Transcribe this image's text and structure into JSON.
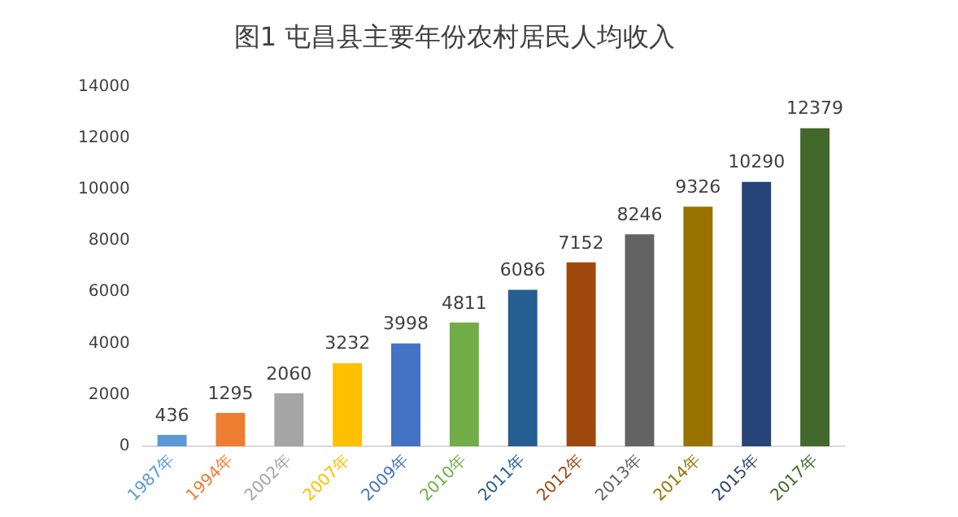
{
  "chart_data": {
    "type": "bar",
    "title": "图1 屯昌县主要年份农村居民人均收入",
    "categories": [
      "1987年",
      "1994年",
      "2002年",
      "2007年",
      "2009年",
      "2010年",
      "2011年",
      "2012年",
      "2013年",
      "2014年",
      "2015年",
      "2017年"
    ],
    "values": [
      436,
      1295,
      2060,
      3232,
      3998,
      4811,
      6086,
      7152,
      8246,
      9326,
      10290,
      12379
    ],
    "colors": [
      "#5b9bd5",
      "#ed7d31",
      "#a5a5a5",
      "#ffc000",
      "#4472c4",
      "#70ad47",
      "#255e91",
      "#9e480e",
      "#636363",
      "#997300",
      "#264478",
      "#43682b"
    ],
    "ylim": [
      0,
      14000
    ],
    "yticks": [
      0,
      2000,
      4000,
      6000,
      8000,
      10000,
      12000,
      14000
    ],
    "grid": false,
    "legend": false,
    "data_labels": true
  }
}
